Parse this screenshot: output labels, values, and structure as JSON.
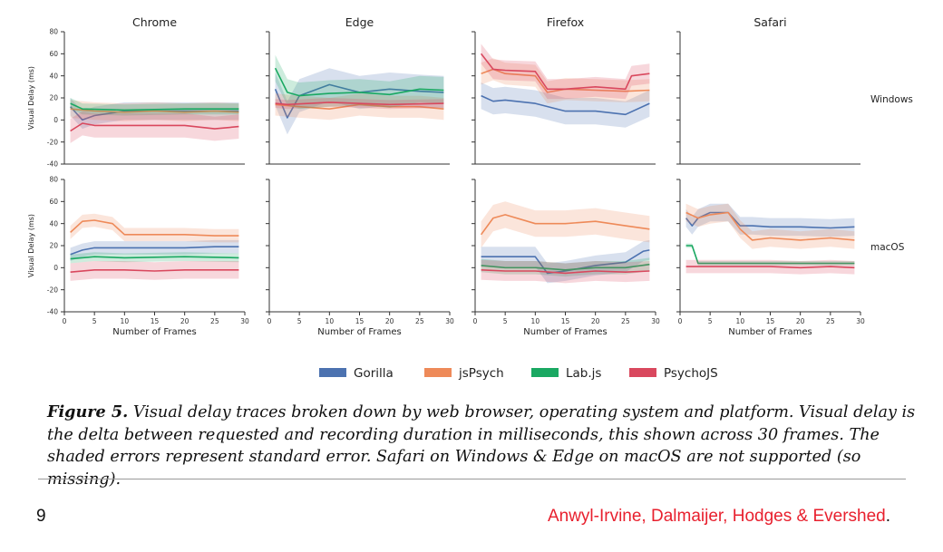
{
  "chart_data": {
    "type": "line",
    "columns": [
      "Chrome",
      "Edge",
      "Firefox",
      "Safari"
    ],
    "rows": [
      "Windows",
      "macOS"
    ],
    "xlabel": "Number of Frames",
    "ylabel": "Visual Delay (ms)",
    "xlim": [
      0,
      30
    ],
    "ylim": [
      -40,
      80
    ],
    "xticks": [
      0,
      5,
      10,
      15,
      20,
      25,
      30
    ],
    "yticks": [
      -40,
      -20,
      0,
      20,
      40,
      60,
      80
    ],
    "series": [
      {
        "name": "Gorilla",
        "color": "#4c72b0"
      },
      {
        "name": "jsPsych",
        "color": "#ee8a59"
      },
      {
        "name": "Lab.js",
        "color": "#1aa862"
      },
      {
        "name": "PsychoJS",
        "color": "#d9485e"
      }
    ],
    "panels": [
      {
        "column": "Chrome",
        "row": "Windows",
        "missing": false,
        "lines": [
          {
            "series": "Gorilla",
            "x": [
              1,
              3,
              5,
              10,
              15,
              20,
              25,
              29
            ],
            "y": [
              12,
              0,
              4,
              8,
              8,
              8,
              8,
              8
            ],
            "err": 8
          },
          {
            "series": "jsPsych",
            "x": [
              1,
              5,
              10,
              15,
              20,
              25,
              29
            ],
            "y": [
              10,
              8,
              7,
              8,
              7,
              8,
              7
            ],
            "err": 8
          },
          {
            "series": "Lab.js",
            "x": [
              1,
              3,
              10,
              20,
              29
            ],
            "y": [
              15,
              10,
              9,
              10,
              10
            ],
            "err": 5
          },
          {
            "series": "PsychoJS",
            "x": [
              1,
              3,
              5,
              10,
              15,
              20,
              25,
              29
            ],
            "y": [
              -10,
              -3,
              -5,
              -5,
              -5,
              -5,
              -8,
              -6
            ],
            "err": 11
          }
        ]
      },
      {
        "column": "Edge",
        "row": "Windows",
        "missing": false,
        "lines": [
          {
            "series": "Gorilla",
            "x": [
              1,
              3,
              5,
              10,
              15,
              20,
              25,
              29
            ],
            "y": [
              28,
              2,
              22,
              32,
              25,
              28,
              26,
              25
            ],
            "err": 15
          },
          {
            "series": "jsPsych",
            "x": [
              1,
              5,
              10,
              15,
              20,
              25,
              29
            ],
            "y": [
              14,
              12,
              10,
              14,
              12,
              12,
              10
            ],
            "err": 10
          },
          {
            "series": "Lab.js",
            "x": [
              1,
              3,
              5,
              10,
              15,
              20,
              25,
              29
            ],
            "y": [
              47,
              25,
              22,
              24,
              25,
              23,
              28,
              27
            ],
            "err": 12
          },
          {
            "series": "PsychoJS",
            "x": [
              1,
              3,
              10,
              20,
              29
            ],
            "y": [
              15,
              14,
              16,
              14,
              15
            ],
            "err": 4
          }
        ]
      },
      {
        "column": "Firefox",
        "row": "Windows",
        "missing": false,
        "lines": [
          {
            "series": "Gorilla",
            "x": [
              1,
              3,
              5,
              10,
              15,
              20,
              25,
              29
            ],
            "y": [
              22,
              17,
              18,
              15,
              8,
              8,
              5,
              15
            ],
            "err": 12
          },
          {
            "series": "jsPsych",
            "x": [
              1,
              3,
              5,
              10,
              12,
              15,
              20,
              25,
              29
            ],
            "y": [
              42,
              46,
              42,
              40,
              25,
              28,
              27,
              26,
              27
            ],
            "err": 10
          },
          {
            "series": "PsychoJS",
            "x": [
              1,
              3,
              5,
              10,
              12,
              15,
              20,
              25,
              26,
              29
            ],
            "y": [
              60,
              46,
              45,
              44,
              28,
              28,
              30,
              28,
              40,
              42
            ],
            "err": 9
          }
        ]
      },
      {
        "column": "Safari",
        "row": "Windows",
        "missing": true,
        "lines": []
      },
      {
        "column": "Chrome",
        "row": "macOS",
        "missing": false,
        "lines": [
          {
            "series": "Gorilla",
            "x": [
              1,
              3,
              5,
              10,
              15,
              20,
              25,
              29
            ],
            "y": [
              12,
              16,
              18,
              18,
              18,
              18,
              19,
              19
            ],
            "err": 6
          },
          {
            "series": "jsPsych",
            "x": [
              1,
              3,
              5,
              8,
              10,
              15,
              20,
              25,
              29
            ],
            "y": [
              32,
              42,
              43,
              40,
              30,
              30,
              30,
              29,
              29
            ],
            "err": 6
          },
          {
            "series": "Lab.js",
            "x": [
              1,
              5,
              10,
              20,
              29
            ],
            "y": [
              8,
              10,
              9,
              10,
              9
            ],
            "err": 4
          },
          {
            "series": "PsychoJS",
            "x": [
              1,
              5,
              10,
              15,
              20,
              25,
              29
            ],
            "y": [
              -4,
              -2,
              -2,
              -3,
              -2,
              -2,
              -2
            ],
            "err": 8
          }
        ]
      },
      {
        "column": "Edge",
        "row": "macOS",
        "missing": true,
        "lines": []
      },
      {
        "column": "Firefox",
        "row": "macOS",
        "missing": false,
        "lines": [
          {
            "series": "Gorilla",
            "x": [
              1,
              5,
              10,
              12,
              15,
              20,
              25,
              28,
              29
            ],
            "y": [
              10,
              10,
              10,
              -5,
              -3,
              2,
              5,
              15,
              16
            ],
            "err": 9
          },
          {
            "series": "jsPsych",
            "x": [
              1,
              3,
              5,
              10,
              15,
              20,
              25,
              29
            ],
            "y": [
              30,
              45,
              48,
              40,
              40,
              42,
              38,
              35
            ],
            "err": 12
          },
          {
            "series": "Lab.js",
            "x": [
              1,
              5,
              10,
              15,
              20,
              25,
              29
            ],
            "y": [
              2,
              0,
              0,
              -2,
              0,
              0,
              3
            ],
            "err": 6
          },
          {
            "series": "PsychoJS",
            "x": [
              1,
              5,
              10,
              15,
              20,
              25,
              29
            ],
            "y": [
              -2,
              -3,
              -3,
              -5,
              -3,
              -4,
              -3
            ],
            "err": 9
          }
        ]
      },
      {
        "column": "Safari",
        "row": "macOS",
        "missing": false,
        "lines": [
          {
            "series": "Gorilla",
            "x": [
              1,
              2,
              3,
              5,
              8,
              10,
              12,
              15,
              20,
              25,
              29
            ],
            "y": [
              45,
              38,
              45,
              50,
              50,
              38,
              38,
              37,
              37,
              36,
              37
            ],
            "err": 8
          },
          {
            "series": "jsPsych",
            "x": [
              1,
              3,
              5,
              8,
              10,
              12,
              15,
              20,
              25,
              29
            ],
            "y": [
              50,
              45,
              48,
              50,
              35,
              25,
              27,
              25,
              27,
              25
            ],
            "err": 8
          },
          {
            "series": "Lab.js",
            "x": [
              1,
              2,
              3,
              10,
              20,
              29
            ],
            "y": [
              20,
              20,
              4,
              4,
              4,
              4
            ],
            "err": 2
          },
          {
            "series": "PsychoJS",
            "x": [
              1,
              5,
              10,
              15,
              20,
              25,
              29
            ],
            "y": [
              1,
              1,
              1,
              1,
              0,
              1,
              0
            ],
            "err": 6
          }
        ]
      }
    ]
  },
  "caption": {
    "label": "Figure 5.",
    "text": " Visual delay traces broken down by web browser, operating system and platform. Visual delay is the delta between requested and recording duration in milliseconds, this shown across 30 frames. The shaded errors represent standard error. Safari on Windows & Edge on macOS are not supported (so missing)."
  },
  "footer": {
    "page_number": "9",
    "authors": "Anwyl-Irvine, Dalmaijer, Hodges & Evershed",
    "authors_color": "#e8202e",
    "period": "."
  }
}
